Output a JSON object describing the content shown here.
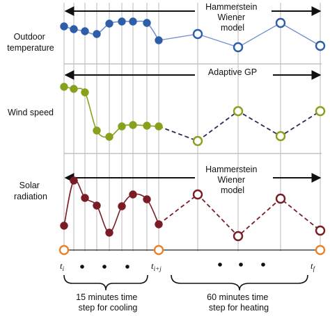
{
  "panels": [
    {
      "label_lines": [
        "Outdoor",
        "temperature"
      ],
      "header_lines": [
        "Hammerstein",
        "Wiener",
        "model"
      ],
      "colors": {
        "fill": "#2e5ea8",
        "line": "#6f8fcf",
        "stroke": "#2e5ea8"
      }
    },
    {
      "label_lines": [
        "Wind speed"
      ],
      "header_lines": [
        "Adaptive GP"
      ],
      "colors": {
        "fill": "#86a11c",
        "line": "#86a11c",
        "stroke": "#86a11c",
        "dash": "#2a2a55"
      }
    },
    {
      "label_lines": [
        "Solar",
        "radiation"
      ],
      "header_lines": [
        "Hammerstein",
        "Wiener",
        "model"
      ],
      "colors": {
        "fill": "#7a1c26",
        "line": "#7a1c26",
        "stroke": "#7a1c26",
        "dash": "#7a1c26"
      }
    }
  ],
  "time_marks": {
    "start": {
      "base": "t",
      "sub": "i"
    },
    "mid": {
      "base": "t",
      "sub": "i+j"
    },
    "end": {
      "base": "t",
      "sub": "f"
    }
  },
  "captions": {
    "cooling": [
      "15 minutes time",
      "step for cooling"
    ],
    "heating": [
      "60 minutes time",
      "step for heating"
    ]
  },
  "colors": {
    "grid": "#b8b8b8",
    "axis": "#222222",
    "origin": "#e8852a"
  }
}
